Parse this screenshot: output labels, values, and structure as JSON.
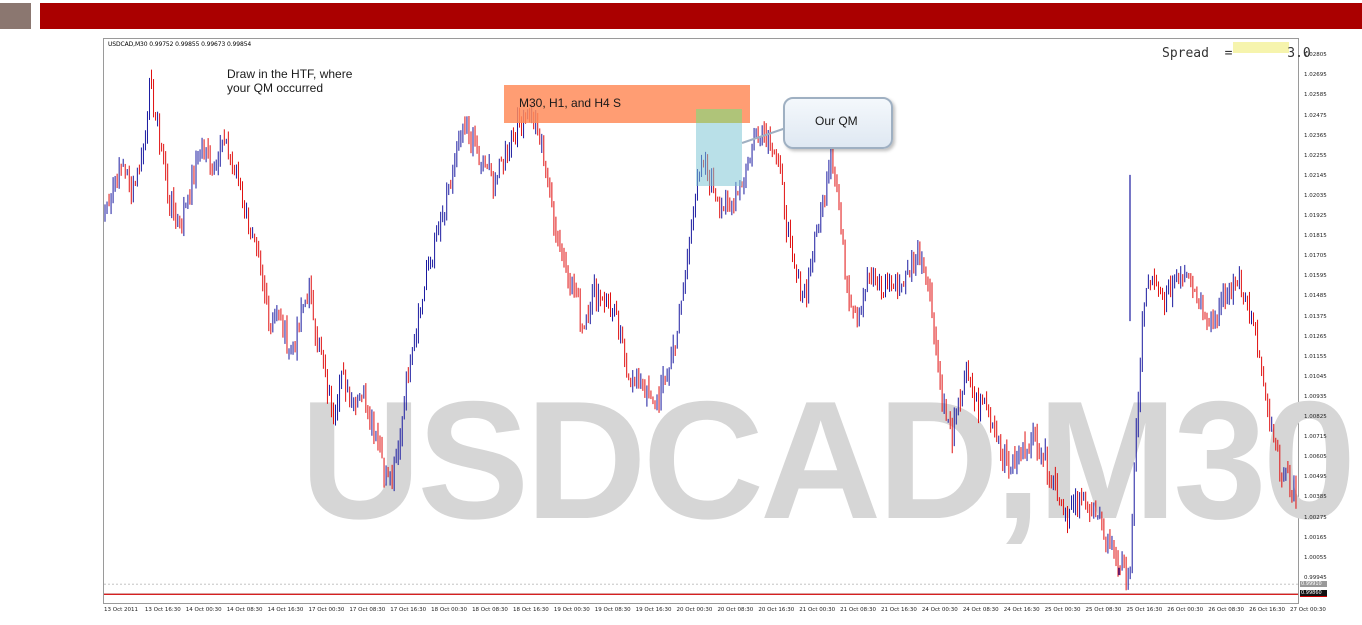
{
  "header": {
    "left_block": "top-left-tile",
    "bar_color": "#aa0000",
    "tile_color": "#8b7770"
  },
  "chart_data": {
    "type": "candlestick",
    "symbol_line": "USDCAD,M30  0.99752 0.99855 0.99673 0.99854",
    "watermark": "USDCAD,M30",
    "spread_label": "Spread  =",
    "spread_value": "3.0",
    "ylim": [
      0.9984,
      1.0285
    ],
    "price_ticks": [
      "1.02805",
      "1.02695",
      "1.02585",
      "1.02475",
      "1.02365",
      "1.02255",
      "1.02145",
      "1.02035",
      "1.01925",
      "1.01815",
      "1.01705",
      "1.01595",
      "1.01485",
      "1.01375",
      "1.01265",
      "1.01155",
      "1.01045",
      "1.00935",
      "1.00825",
      "1.00715",
      "1.00605",
      "1.00495",
      "1.00385",
      "1.00275",
      "1.00165",
      "1.00055",
      "0.99945"
    ],
    "price_tags": [
      {
        "value": "0.99854",
        "y_price": 0.99854,
        "color": "#d00000"
      },
      {
        "value": "0.99860",
        "y_price": 0.9986,
        "color": "#111111"
      },
      {
        "value": "0.99910",
        "y_price": 0.9991,
        "color": "#999999"
      }
    ],
    "time_ticks": [
      "13 Oct 2011",
      "13 Oct 16:30",
      "14 Oct 00:30",
      "14 Oct 08:30",
      "14 Oct 16:30",
      "17 Oct 00:30",
      "17 Oct 08:30",
      "17 Oct 16:30",
      "18 Oct 00:30",
      "18 Oct 08:30",
      "18 Oct 16:30",
      "19 Oct 00:30",
      "19 Oct 08:30",
      "19 Oct 16:30",
      "20 Oct 00:30",
      "20 Oct 08:30",
      "20 Oct 16:30",
      "21 Oct 00:30",
      "21 Oct 08:30",
      "21 Oct 16:30",
      "24 Oct 00:30",
      "24 Oct 08:30",
      "24 Oct 16:30",
      "25 Oct 00:30",
      "25 Oct 08:30",
      "25 Oct 16:30",
      "26 Oct 00:30",
      "26 Oct 08:30",
      "26 Oct 16:30",
      "27 Oct 00:30"
    ],
    "close_path": [
      1.0195,
      1.0208,
      1.0214,
      1.0222,
      1.0206,
      1.0215,
      1.023,
      1.0262,
      1.0245,
      1.0228,
      1.0202,
      1.0195,
      1.0188,
      1.0205,
      1.0214,
      1.023,
      1.0226,
      1.0218,
      1.0234,
      1.0229,
      1.022,
      1.0212,
      1.0196,
      1.0182,
      1.0168,
      1.015,
      1.0135,
      1.0142,
      1.013,
      1.0118,
      1.0125,
      1.0142,
      1.0152,
      1.0133,
      1.0115,
      1.0096,
      1.0088,
      1.0103,
      1.01,
      1.0092,
      1.0098,
      1.0089,
      1.008,
      1.007,
      1.0052,
      1.0048,
      1.0062,
      1.0095,
      1.0118,
      1.0135,
      1.015,
      1.0168,
      1.018,
      1.019,
      1.0205,
      1.0222,
      1.0236,
      1.0238,
      1.0232,
      1.0218,
      1.022,
      1.021,
      1.0218,
      1.023,
      1.0236,
      1.0242,
      1.025,
      1.0246,
      1.0238,
      1.0222,
      1.02,
      1.0182,
      1.0168,
      1.016,
      1.0148,
      1.0132,
      1.0145,
      1.0152,
      1.0149,
      1.0146,
      1.0138,
      1.0125,
      1.011,
      1.0098,
      1.0106,
      1.0095,
      1.0088,
      1.0095,
      1.0102,
      1.0118,
      1.0132,
      1.0155,
      1.019,
      1.021,
      1.022,
      1.0214,
      1.0205,
      1.0198,
      1.0192,
      1.0206,
      1.0212,
      1.0222,
      1.0236,
      1.024,
      1.0238,
      1.0232,
      1.0216,
      1.0188,
      1.0164,
      1.0154,
      1.015,
      1.017,
      1.0188,
      1.0206,
      1.023,
      1.0205,
      1.0168,
      1.0148,
      1.014,
      1.015,
      1.016,
      1.0155,
      1.015,
      1.0158,
      1.0152,
      1.0156,
      1.016,
      1.0168,
      1.0172,
      1.016,
      1.0138,
      1.0104,
      1.0082,
      1.0072,
      1.0088,
      1.0106,
      1.0098,
      1.0088,
      1.0093,
      1.0082,
      1.0074,
      1.0062,
      1.0054,
      1.0058,
      1.0064,
      1.0068,
      1.0072,
      1.0066,
      1.0056,
      1.0048,
      1.0038,
      1.003,
      1.0032,
      1.0036,
      1.0038,
      1.003,
      1.0025,
      1.0018,
      1.0012,
      1.0004,
      0.9996,
      1.0002,
      1.008,
      1.014,
      1.0158,
      1.0152,
      1.0146,
      1.015,
      1.016,
      1.0162,
      1.0165,
      1.0152,
      1.0146,
      1.014,
      1.0136,
      1.0142,
      1.0148,
      1.0152,
      1.0162,
      1.0148,
      1.0136,
      1.012,
      1.0095,
      1.0075,
      1.0062,
      1.0052,
      1.0044,
      1.004
    ]
  },
  "annotations": {
    "note": "Draw in the HTF, where\nyour QM occurred",
    "note_line1": "Draw in the HTF, where",
    "note_line2": "your QM occurred",
    "orange_label": "M30, H1, and H4 S",
    "callout_label": "Our QM"
  },
  "colors": {
    "bull": "#1a1aa0",
    "bear": "#e01010",
    "orange_zone": "#ff8c5a",
    "qm_zone": "#7fc6d6"
  }
}
